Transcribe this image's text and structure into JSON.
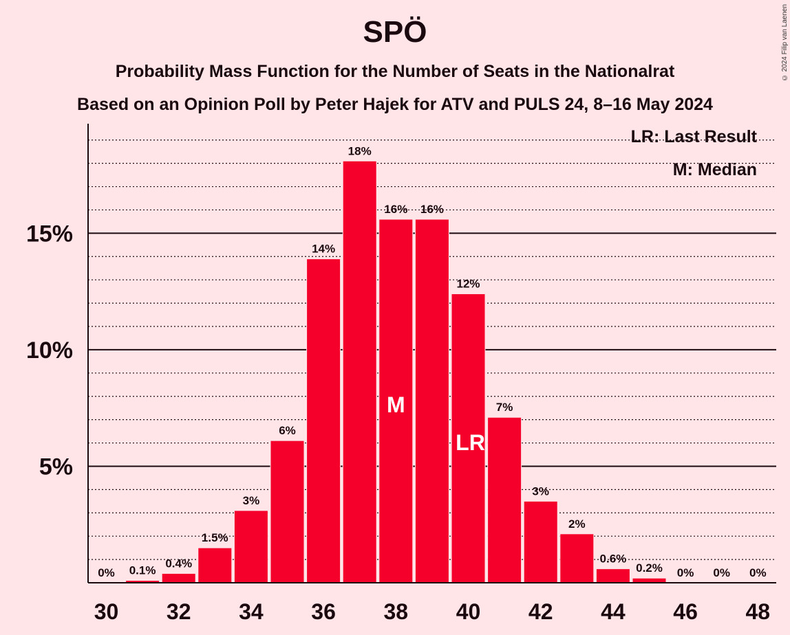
{
  "chart_data": {
    "type": "bar",
    "title": "SPÖ",
    "subtitle_lines": [
      "Probability Mass Function for the Number of Seats in the Nationalrat",
      "Based on an Opinion Poll by Peter Hajek for ATV and PULS 24, 8–16 May 2024"
    ],
    "copyright": "© 2024 Filip van Laenen",
    "legend": [
      "LR: Last Result",
      "M: Median"
    ],
    "x": [
      30,
      31,
      32,
      33,
      34,
      35,
      36,
      37,
      38,
      39,
      40,
      41,
      42,
      43,
      44,
      45,
      46,
      47,
      48
    ],
    "values": [
      0,
      0.1,
      0.4,
      1.5,
      3.1,
      6.1,
      13.9,
      18.1,
      15.6,
      15.6,
      12.4,
      7.1,
      3.5,
      2.1,
      0.6,
      0.2,
      0,
      0,
      0
    ],
    "data_labels": [
      "0%",
      "0.1%",
      "0.4%",
      "1.5%",
      "3%",
      "6%",
      "14%",
      "18%",
      "16%",
      "16%",
      "12%",
      "7%",
      "3%",
      "2%",
      "0.6%",
      "0.2%",
      "0%",
      "0%",
      "0%"
    ],
    "median_seat": 38,
    "median_label": "M",
    "last_result_seat": 40,
    "last_result_label": "LR",
    "x_tick_labels": [
      "30",
      "32",
      "34",
      "36",
      "38",
      "40",
      "42",
      "44",
      "46",
      "48"
    ],
    "y_ticks": [
      5,
      10,
      15
    ],
    "y_tick_labels": [
      "5%",
      "10%",
      "15%"
    ],
    "ylim": [
      0,
      19.7
    ],
    "minor_grid_step": 1,
    "bar_color": "#F5002B",
    "background_color": "#FFE5E8"
  }
}
